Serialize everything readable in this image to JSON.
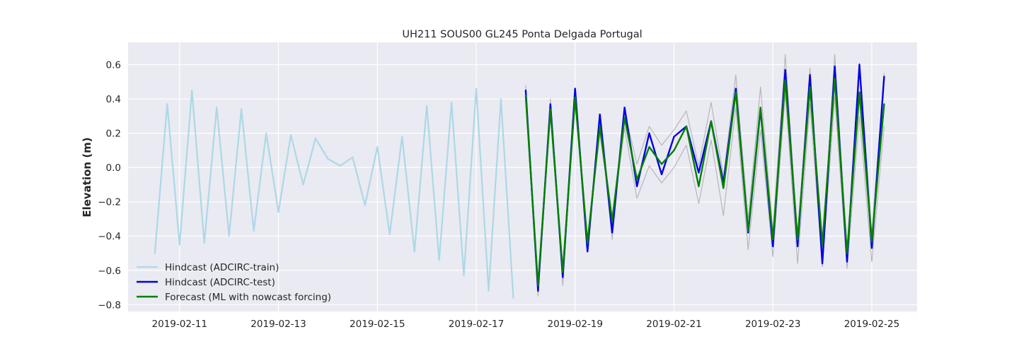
{
  "chart_data": {
    "type": "line",
    "title": "UH211 SOUS00 GL245 Ponta Delgada Portugal",
    "xlabel": "",
    "ylabel": "Elevation (m)",
    "x_axis_type": "date",
    "xlim": [
      "2019-02-09T23:00",
      "2019-02-25T22:00"
    ],
    "ylim": [
      -0.84,
      0.73
    ],
    "x_ticks": [
      "2019-02-11",
      "2019-02-13",
      "2019-02-15",
      "2019-02-17",
      "2019-02-19",
      "2019-02-21",
      "2019-02-23",
      "2019-02-25"
    ],
    "y_ticks": [
      "0.6",
      "0.4",
      "0.2",
      "0.0",
      "−0.2",
      "−0.4",
      "−0.6",
      "−0.8"
    ],
    "grid": true,
    "legend_position": "lower-left",
    "series": [
      {
        "name": "Hindcast (ADCIRC-train)",
        "color": "#add8e6",
        "x": [
          "2019-02-10T12:00",
          "2019-02-10T18:00",
          "2019-02-11T00:00",
          "2019-02-11T06:00",
          "2019-02-11T12:00",
          "2019-02-11T18:00",
          "2019-02-12T00:00",
          "2019-02-12T06:00",
          "2019-02-12T12:00",
          "2019-02-12T18:00",
          "2019-02-13T00:00",
          "2019-02-13T06:00",
          "2019-02-13T12:00",
          "2019-02-13T18:00",
          "2019-02-14T00:00",
          "2019-02-14T06:00",
          "2019-02-14T12:00",
          "2019-02-14T18:00",
          "2019-02-15T00:00",
          "2019-02-15T06:00",
          "2019-02-15T12:00",
          "2019-02-15T18:00",
          "2019-02-16T00:00",
          "2019-02-16T06:00",
          "2019-02-16T12:00",
          "2019-02-16T18:00",
          "2019-02-17T00:00",
          "2019-02-17T06:00",
          "2019-02-17T12:00",
          "2019-02-17T18:00"
        ],
        "values": [
          -0.5,
          0.37,
          -0.45,
          0.45,
          -0.44,
          0.35,
          -0.4,
          0.34,
          -0.37,
          0.2,
          -0.26,
          0.19,
          -0.1,
          0.17,
          0.05,
          0.01,
          0.06,
          -0.22,
          0.12,
          -0.39,
          0.18,
          -0.49,
          0.36,
          -0.54,
          0.38,
          -0.63,
          0.46,
          -0.72,
          0.4,
          -0.76
        ]
      },
      {
        "name": "Hindcast (ADCIRC-test)",
        "color": "#0000e6",
        "x": [
          "2019-02-18T00:00",
          "2019-02-18T06:00",
          "2019-02-18T12:00",
          "2019-02-18T18:00",
          "2019-02-19T00:00",
          "2019-02-19T06:00",
          "2019-02-19T12:00",
          "2019-02-19T18:00",
          "2019-02-20T00:00",
          "2019-02-20T06:00",
          "2019-02-20T12:00",
          "2019-02-20T18:00",
          "2019-02-21T00:00",
          "2019-02-21T06:00",
          "2019-02-21T12:00",
          "2019-02-21T18:00",
          "2019-02-22T00:00",
          "2019-02-22T06:00",
          "2019-02-22T12:00",
          "2019-02-22T18:00",
          "2019-02-23T00:00",
          "2019-02-23T06:00",
          "2019-02-23T12:00",
          "2019-02-23T18:00",
          "2019-02-24T00:00",
          "2019-02-24T06:00",
          "2019-02-24T12:00",
          "2019-02-24T18:00",
          "2019-02-25T00:00",
          "2019-02-25T06:00"
        ],
        "values": [
          0.45,
          -0.72,
          0.37,
          -0.64,
          0.46,
          -0.49,
          0.31,
          -0.38,
          0.35,
          -0.11,
          0.2,
          -0.04,
          0.18,
          0.24,
          -0.03,
          0.27,
          -0.09,
          0.46,
          -0.38,
          0.34,
          -0.46,
          0.57,
          -0.46,
          0.54,
          -0.56,
          0.59,
          -0.55,
          0.6,
          -0.47,
          0.53
        ]
      },
      {
        "name": "Forecast (ML with nowcast forcing)",
        "color": "#008000",
        "x": [
          "2019-02-18T00:00",
          "2019-02-18T06:00",
          "2019-02-18T12:00",
          "2019-02-18T18:00",
          "2019-02-19T00:00",
          "2019-02-19T06:00",
          "2019-02-19T12:00",
          "2019-02-19T18:00",
          "2019-02-20T00:00",
          "2019-02-20T06:00",
          "2019-02-20T12:00",
          "2019-02-20T18:00",
          "2019-02-21T00:00",
          "2019-02-21T06:00",
          "2019-02-21T12:00",
          "2019-02-21T18:00",
          "2019-02-22T00:00",
          "2019-02-22T06:00",
          "2019-02-22T12:00",
          "2019-02-22T18:00",
          "2019-02-23T00:00",
          "2019-02-23T06:00",
          "2019-02-23T12:00",
          "2019-02-23T18:00",
          "2019-02-24T00:00",
          "2019-02-24T06:00",
          "2019-02-24T12:00",
          "2019-02-24T18:00",
          "2019-02-25T00:00",
          "2019-02-25T06:00"
        ],
        "values": [
          0.42,
          -0.69,
          0.34,
          -0.61,
          0.41,
          -0.44,
          0.24,
          -0.31,
          0.29,
          -0.07,
          0.12,
          0.02,
          0.1,
          0.24,
          -0.11,
          0.27,
          -0.12,
          0.44,
          -0.37,
          0.35,
          -0.42,
          0.51,
          -0.42,
          0.47,
          -0.45,
          0.52,
          -0.5,
          0.44,
          -0.43,
          0.37
        ]
      },
      {
        "color": "#b3b3b3",
        "x": [
          "2019-02-18T00:00",
          "2019-02-18T06:00",
          "2019-02-18T12:00",
          "2019-02-18T18:00",
          "2019-02-19T00:00",
          "2019-02-19T06:00",
          "2019-02-19T12:00",
          "2019-02-19T18:00",
          "2019-02-20T00:00",
          "2019-02-20T06:00",
          "2019-02-20T12:00",
          "2019-02-20T18:00",
          "2019-02-21T00:00",
          "2019-02-21T06:00",
          "2019-02-21T12:00",
          "2019-02-21T18:00",
          "2019-02-22T00:00",
          "2019-02-22T06:00",
          "2019-02-22T12:00",
          "2019-02-22T18:00",
          "2019-02-23T00:00",
          "2019-02-23T06:00",
          "2019-02-23T12:00",
          "2019-02-23T18:00",
          "2019-02-24T00:00",
          "2019-02-24T06:00",
          "2019-02-24T12:00",
          "2019-02-24T18:00",
          "2019-02-25T00:00",
          "2019-02-25T06:00"
        ],
        "values": [
          0.48,
          -0.75,
          0.4,
          -0.69,
          0.44,
          -0.47,
          0.28,
          -0.42,
          0.33,
          0.02,
          0.24,
          0.13,
          0.22,
          0.33,
          0.01,
          0.38,
          -0.05,
          0.54,
          -0.3,
          0.47,
          -0.37,
          0.66,
          -0.39,
          0.58,
          -0.47,
          0.66,
          -0.48,
          0.61,
          -0.38,
          0.55
        ]
      },
      {
        "color": "#b3b3b3",
        "x": [
          "2019-02-18T00:00",
          "2019-02-18T06:00",
          "2019-02-18T12:00",
          "2019-02-18T18:00",
          "2019-02-19T00:00",
          "2019-02-19T06:00",
          "2019-02-19T12:00",
          "2019-02-19T18:00",
          "2019-02-20T00:00",
          "2019-02-20T06:00",
          "2019-02-20T12:00",
          "2019-02-20T18:00",
          "2019-02-21T00:00",
          "2019-02-21T06:00",
          "2019-02-21T12:00",
          "2019-02-21T18:00",
          "2019-02-22T00:00",
          "2019-02-22T06:00",
          "2019-02-22T12:00",
          "2019-02-22T18:00",
          "2019-02-23T00:00",
          "2019-02-23T06:00",
          "2019-02-23T12:00",
          "2019-02-23T18:00",
          "2019-02-24T00:00",
          "2019-02-24T06:00",
          "2019-02-24T12:00",
          "2019-02-24T18:00",
          "2019-02-25T00:00",
          "2019-02-25T06:00"
        ],
        "values": [
          0.38,
          -0.68,
          0.3,
          -0.58,
          0.36,
          -0.41,
          0.2,
          -0.33,
          0.23,
          -0.18,
          0.01,
          -0.09,
          0.0,
          0.13,
          -0.21,
          0.16,
          -0.28,
          0.35,
          -0.48,
          0.22,
          -0.52,
          0.43,
          -0.56,
          0.37,
          -0.58,
          0.41,
          -0.59,
          0.3,
          -0.55,
          0.24
        ]
      }
    ]
  }
}
